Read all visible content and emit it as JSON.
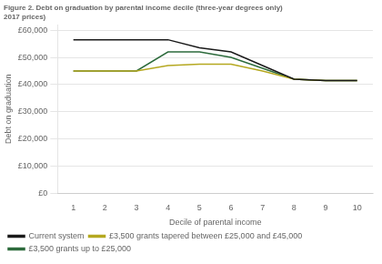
{
  "chart_data": {
    "type": "line",
    "title": [
      "Figure 2. Debt on graduation by parental income decile (three-year degrees only)",
      "2017 prices)"
    ],
    "xlabel": "Decile of parental income",
    "ylabel": "Debt on graduation",
    "x": [
      1,
      2,
      3,
      4,
      5,
      6,
      7,
      8,
      9,
      10
    ],
    "series": [
      {
        "name": "Current system",
        "color": "#1a1a1a",
        "values": [
          56500,
          56500,
          56500,
          56500,
          53500,
          52000,
          47000,
          42000,
          41500,
          41500
        ]
      },
      {
        "name": "£3,500 grants tapered between £25,000 and £45,000",
        "color": "#b5a820",
        "values": [
          45000,
          45000,
          45000,
          47000,
          47500,
          47500,
          45000,
          42000,
          41500,
          41500
        ]
      },
      {
        "name": "£3,500 grants up to £25,000",
        "color": "#2d6b3c",
        "values": [
          45000,
          45000,
          45000,
          52000,
          52000,
          50000,
          46000,
          42000,
          41500,
          41500
        ]
      }
    ],
    "xlim": [
      0.5,
      10.5
    ],
    "xticks": [
      1,
      2,
      3,
      4,
      5,
      6,
      7,
      8,
      9,
      10
    ],
    "ylim": [
      0,
      62000
    ],
    "yticks": [
      {
        "value": 0,
        "label": "£0"
      },
      {
        "value": 10000,
        "label": "£10,000"
      },
      {
        "value": 20000,
        "label": "£20,000"
      },
      {
        "value": 30000,
        "label": "£30,000"
      },
      {
        "value": 40000,
        "label": "£40,000"
      },
      {
        "value": 50000,
        "label": "£50,000"
      },
      {
        "value": 60000,
        "label": "£60,000"
      }
    ],
    "grid": "y",
    "legend": "bottom"
  }
}
